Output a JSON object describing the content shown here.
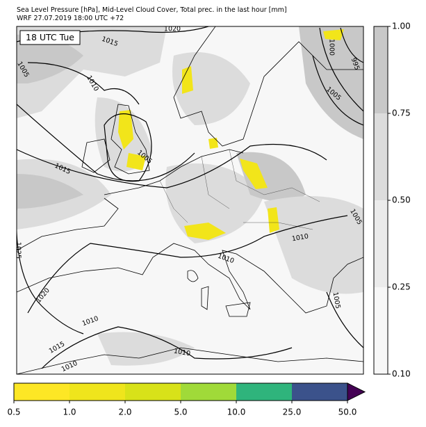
{
  "header": {
    "line1": "Sea Level Pressure [hPa], Mid-Level Cloud Cover, Total prec. in the last hour [mm]",
    "line2": "WRF 27.07.2019 18:00 UTC +72"
  },
  "time_label": "18 UTC Tue",
  "contour_labels": [
    "1020",
    "1015",
    "1005",
    "1010",
    "1015",
    "1005",
    "1000",
    "995",
    "1005",
    "1005",
    "1010",
    "1010",
    "1025",
    "1020",
    "1010",
    "1015",
    "1010",
    "1010",
    "1005"
  ],
  "cloud_colorbar": {
    "labels": [
      "0.10",
      "0.25",
      "0.50",
      "0.75",
      "1.00"
    ],
    "colors": [
      "#f7f7f7",
      "#ebebeb",
      "#dcdcdc",
      "#c8c8c8"
    ]
  },
  "precip_colorbar": {
    "labels": [
      "0.5",
      "1.0",
      "2.0",
      "5.0",
      "10.0",
      "25.0",
      "50.0"
    ],
    "colors": [
      "#fde725",
      "#efe51c",
      "#d8e219",
      "#a0da39",
      "#2fb47c",
      "#3b528b",
      "#440154"
    ]
  }
}
